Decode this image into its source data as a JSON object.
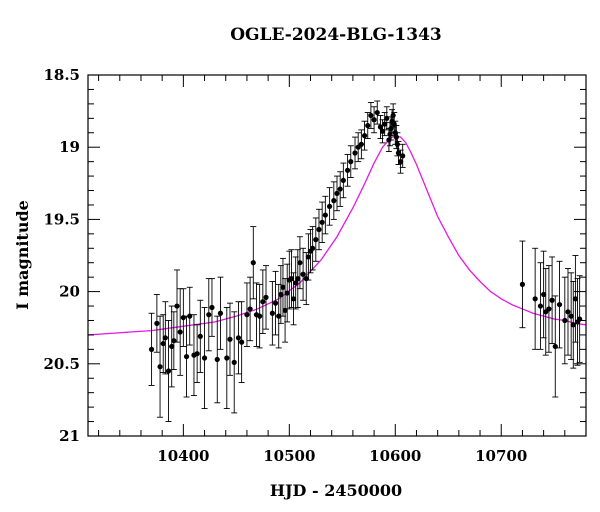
{
  "chart_data": {
    "type": "scatter",
    "title": "OGLE-2024-BLG-1343",
    "xlabel": "HJD - 2450000",
    "ylabel": "I magnitude",
    "xlim": [
      10310,
      10780
    ],
    "ylim": [
      21,
      18.5
    ],
    "y_inverted": true,
    "grid": false,
    "x_ticks": [
      10400,
      10500,
      10600,
      10700
    ],
    "x_tick_labels": [
      "10400",
      "10500",
      "10600",
      "10700"
    ],
    "y_ticks": [
      18.5,
      19,
      19.5,
      20,
      20.5,
      21
    ],
    "y_tick_labels": [
      "18.5",
      "19",
      "19.5",
      "20",
      "20.5",
      "21"
    ],
    "colors": {
      "points": "#000000",
      "model": "#e619e6",
      "frame": "#000000"
    },
    "series": [
      {
        "kind": "points",
        "x": [
          10370,
          10375,
          10378,
          10381,
          10383,
          10386,
          10389,
          10391,
          10394,
          10397,
          10400,
          10403,
          10406,
          10410,
          10413,
          10416,
          10420,
          10424,
          10427,
          10432,
          10435,
          10441,
          10444,
          10448,
          10452,
          10455,
          10460,
          10463,
          10466,
          10469,
          10472,
          10475,
          10478,
          10484,
          10487,
          10490,
          10492,
          10494,
          10496,
          10498,
          10500,
          10502,
          10504,
          10506,
          10508,
          10510,
          10513,
          10516,
          10518,
          10520,
          10522,
          10525,
          10528,
          10531,
          10534,
          10538,
          10542,
          10545,
          10548,
          10551,
          10555,
          10558,
          10562,
          10565,
          10568,
          10571,
          10574,
          10577,
          10580,
          10583,
          10586,
          10588,
          10590,
          10592,
          10594,
          10595,
          10596,
          10597,
          10598,
          10599,
          10600,
          10601,
          10602,
          10603,
          10605,
          10607,
          10720,
          10732,
          10737,
          10740,
          10742,
          10745,
          10748,
          10751,
          10755,
          10760,
          10763,
          10766,
          10768,
          10770,
          10772,
          10774
        ],
        "y": [
          20.4,
          20.22,
          20.52,
          20.36,
          20.32,
          20.55,
          20.38,
          20.34,
          20.1,
          20.28,
          20.18,
          20.45,
          20.17,
          20.44,
          20.43,
          20.31,
          20.46,
          20.16,
          20.11,
          20.47,
          20.15,
          20.46,
          20.33,
          20.49,
          20.32,
          20.35,
          20.16,
          20.12,
          19.8,
          20.16,
          20.17,
          20.07,
          20.04,
          20.15,
          20.08,
          20.17,
          20.02,
          19.97,
          20.13,
          20.01,
          19.92,
          19.91,
          20.05,
          19.94,
          19.91,
          19.8,
          19.88,
          19.91,
          19.76,
          19.72,
          19.7,
          19.64,
          19.57,
          19.52,
          19.47,
          19.41,
          19.37,
          19.32,
          19.29,
          19.23,
          19.16,
          19.1,
          19.04,
          19.0,
          18.98,
          18.92,
          18.85,
          18.78,
          18.81,
          18.76,
          18.86,
          18.89,
          18.84,
          18.8,
          18.95,
          18.91,
          18.87,
          18.82,
          18.78,
          18.84,
          18.9,
          18.93,
          18.98,
          19.04,
          19.1,
          19.06,
          19.95,
          20.05,
          20.1,
          20.02,
          20.14,
          20.12,
          20.06,
          20.38,
          20.09,
          20.2,
          20.14,
          20.17,
          20.23,
          20.05,
          20.21,
          20.19
        ],
        "yerr": [
          0.25,
          0.2,
          0.35,
          0.2,
          0.25,
          0.35,
          0.28,
          0.2,
          0.25,
          0.3,
          0.2,
          0.28,
          0.2,
          0.28,
          0.2,
          0.25,
          0.35,
          0.25,
          0.2,
          0.3,
          0.25,
          0.35,
          0.25,
          0.35,
          0.25,
          0.28,
          0.22,
          0.22,
          0.25,
          0.22,
          0.22,
          0.22,
          0.22,
          0.22,
          0.22,
          0.22,
          0.2,
          0.2,
          0.22,
          0.2,
          0.2,
          0.2,
          0.18,
          0.18,
          0.2,
          0.18,
          0.18,
          0.18,
          0.16,
          0.15,
          0.15,
          0.15,
          0.14,
          0.14,
          0.13,
          0.13,
          0.13,
          0.12,
          0.12,
          0.12,
          0.11,
          0.11,
          0.11,
          0.1,
          0.1,
          0.1,
          0.09,
          0.09,
          0.09,
          0.08,
          0.08,
          0.08,
          0.08,
          0.08,
          0.08,
          0.08,
          0.08,
          0.08,
          0.08,
          0.08,
          0.08,
          0.08,
          0.08,
          0.08,
          0.08,
          0.08,
          0.3,
          0.35,
          0.3,
          0.3,
          0.3,
          0.3,
          0.3,
          0.35,
          0.3,
          0.3,
          0.3,
          0.3,
          0.3,
          0.3,
          0.3,
          0.3
        ]
      },
      {
        "kind": "model_curve",
        "x": [
          10310,
          10330,
          10350,
          10370,
          10390,
          10410,
          10430,
          10450,
          10470,
          10490,
          10510,
          10530,
          10545,
          10560,
          10570,
          10580,
          10588,
          10595,
          10600,
          10605,
          10610,
          10615,
          10620,
          10630,
          10640,
          10650,
          10660,
          10670,
          10680,
          10690,
          10700,
          10710,
          10720,
          10730,
          10740,
          10750,
          10760,
          10770,
          10780
        ],
        "y": [
          20.3,
          20.29,
          20.28,
          20.27,
          20.25,
          20.23,
          20.21,
          20.17,
          20.12,
          20.05,
          19.94,
          19.78,
          19.62,
          19.42,
          19.27,
          19.11,
          19.0,
          18.94,
          18.92,
          18.93,
          18.97,
          19.04,
          19.12,
          19.3,
          19.48,
          19.62,
          19.75,
          19.85,
          19.93,
          20.0,
          20.05,
          20.09,
          20.12,
          20.15,
          20.17,
          20.19,
          20.2,
          20.22,
          20.23
        ]
      }
    ]
  }
}
